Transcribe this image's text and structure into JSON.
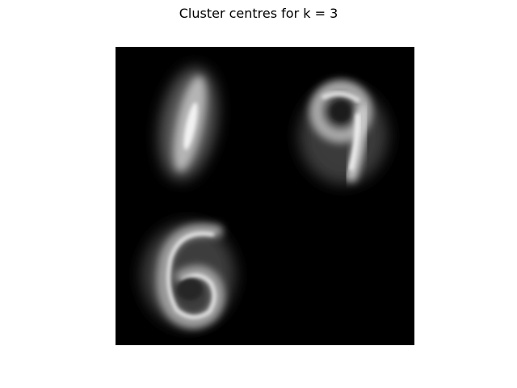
{
  "figure": {
    "title": "Cluster centres for k = 3"
  },
  "image": {
    "description_tiles": [
      "1",
      "9",
      "6",
      ""
    ],
    "background_color": "#000000",
    "digit_color": "#ffffff"
  }
}
